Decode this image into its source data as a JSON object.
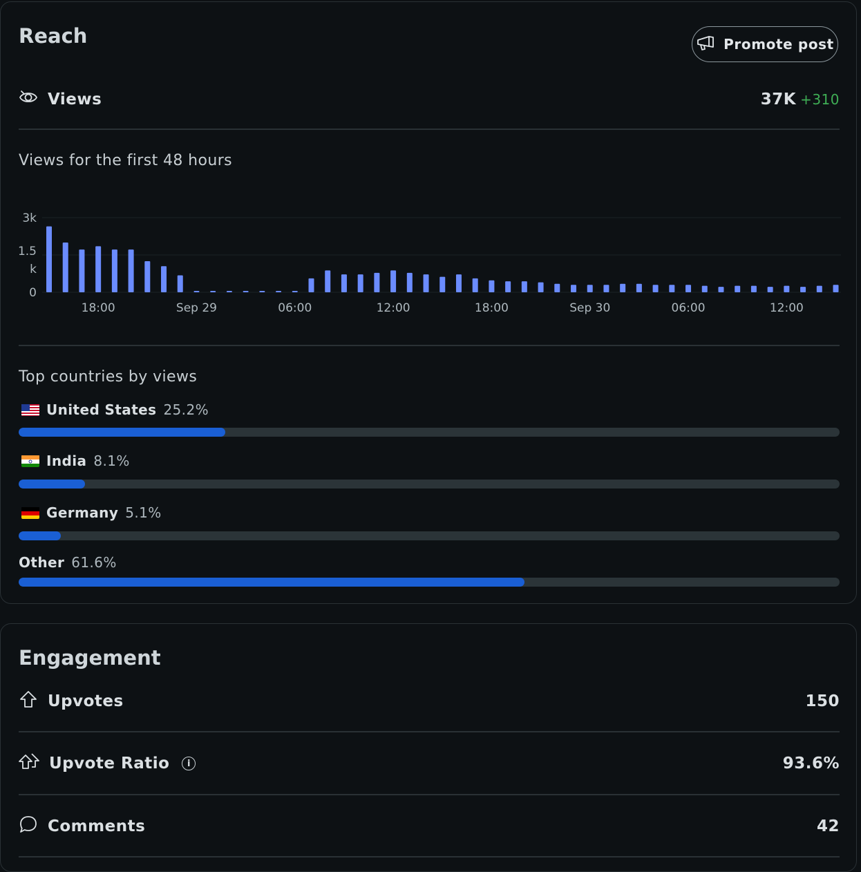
{
  "reach": {
    "title": "Reach",
    "promote_label": "Promote post",
    "views_label": "Views",
    "views_value": "37K",
    "views_delta": "+310",
    "chart_heading": "Views for the first 48 hours",
    "countries_heading": "Top countries by views",
    "countries": [
      {
        "flag": "us",
        "name": "United States",
        "pct_label": "25.2%",
        "fraction": 0.252
      },
      {
        "flag": "in",
        "name": "India",
        "pct_label": "8.1%",
        "fraction": 0.081
      },
      {
        "flag": "de",
        "name": "Germany",
        "pct_label": "5.1%",
        "fraction": 0.051
      },
      {
        "flag": "",
        "name": "Other",
        "pct_label": "61.6%",
        "fraction": 0.616
      }
    ]
  },
  "chart_data": {
    "type": "bar",
    "ylim": [
      0,
      3000
    ],
    "y_ticks": [
      "3k",
      "1.5k",
      "0"
    ],
    "x_tick_labels": [
      "18:00",
      "Sep 29",
      "06:00",
      "12:00",
      "18:00",
      "Sep 30",
      "06:00",
      "12:00"
    ],
    "values": [
      2650,
      2000,
      1720,
      1850,
      1720,
      1720,
      1250,
      1050,
      680,
      20,
      20,
      20,
      20,
      20,
      20,
      20,
      560,
      880,
      720,
      720,
      780,
      880,
      780,
      720,
      620,
      720,
      560,
      480,
      440,
      440,
      400,
      340,
      300,
      300,
      300,
      340,
      340,
      300,
      300,
      300,
      260,
      220,
      260,
      260,
      220,
      260,
      220,
      260,
      300
    ],
    "colors": {
      "bar": "#6b8cff",
      "grid": "#1c2226",
      "tick": "#aeb8be"
    }
  },
  "engagement": {
    "title": "Engagement",
    "upvotes_label": "Upvotes",
    "upvotes_value": "150",
    "ratio_label": "Upvote Ratio",
    "ratio_value": "93.6%",
    "comments_label": "Comments",
    "comments_value": "42"
  }
}
